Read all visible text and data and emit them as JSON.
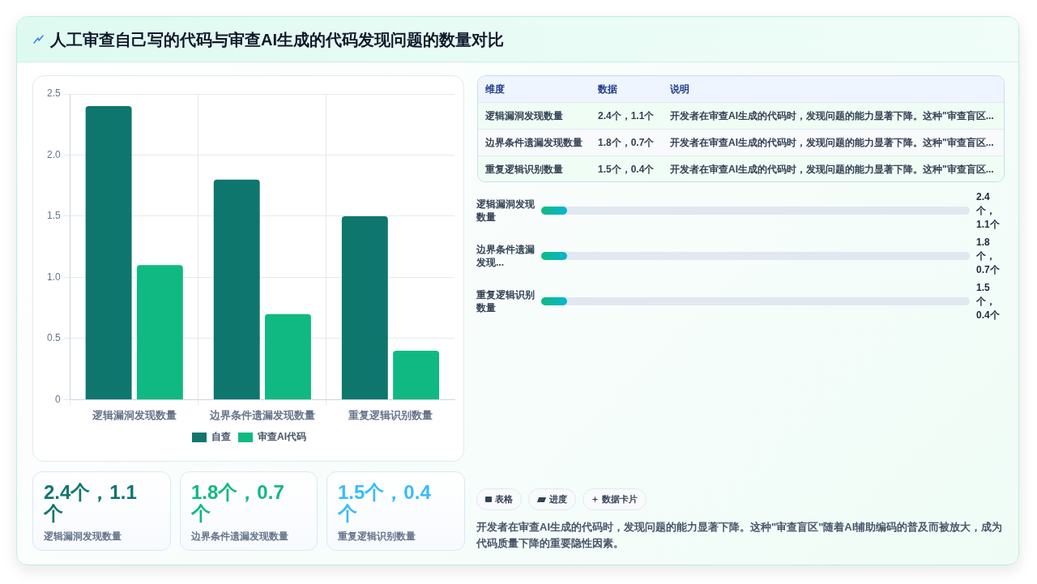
{
  "chart_data": [
    {
      "type": "bar",
      "title": "人工审查自己写的代码与审查AI生成的代码发现问题的数量对比",
      "categories": [
        "逻辑漏洞发现数量",
        "边界条件遗漏发现数量",
        "重复逻辑识别数量"
      ],
      "series": [
        {
          "name": "自查",
          "color": "#0f766e",
          "values": [
            2.4,
            1.8,
            1.5
          ]
        },
        {
          "name": "审查AI代码",
          "color": "#10b981",
          "values": [
            1.1,
            0.7,
            0.4
          ]
        }
      ],
      "ylim": [
        0,
        2.5
      ],
      "yticks": [
        0,
        0.5,
        {
          "value": 1,
          "label": "1.0"
        },
        1.5,
        {
          "value": 2,
          "label": "2.0"
        },
        2.5
      ],
      "grid": true,
      "legend": "bottom"
    },
    {
      "type": "other",
      "categories": [
        "维度",
        "数据",
        "说明"
      ],
      "annotations": [
        "逻辑漏洞发现数量",
        "2.4个，1.1个",
        "开发者在审查AI生成的代码时，发现问题的能力显著下降。这种\"审查盲区...",
        "边界条件遗漏发现数量",
        "1.8个，0.7个",
        "开发者在审查AI生成的代码时，发现问题的能力显著下降。这种\"审查盲区...",
        "重复逻辑识别数量",
        "1.5个，0.4个",
        "开发者在审查AI生成的代码时，发现问题的能力显著下降。这种\"审查盲区..."
      ]
    },
    {
      "type": "other",
      "categories": [
        "逻辑漏洞发现数量",
        "边界条件遗漏发现...",
        "重复逻辑识别数量"
      ],
      "annotations": [
        "2.4个，1.1个",
        "1.8个，0.7个",
        "1.5个，0.4个"
      ]
    },
    {
      "type": "other",
      "categories": [
        "逻辑漏洞发现数量",
        "边界条件遗漏发现数量",
        "重复逻辑识别数量"
      ],
      "annotations": [
        "2.4个，1.1个",
        "1.8个，0.7个",
        "1.5个，0.4个"
      ]
    },
    {
      "type": "other",
      "categories": [
        "表格",
        "进度",
        "数据卡片"
      ],
      "annotations": [
        "开发者在审查AI生成的代码时，发现问题的能力显著下降。这种\"审查盲区\"随着AI辅助编码的普及而被放大，成为代码质量下降的重要隐性因素。"
      ]
    }
  ]
}
